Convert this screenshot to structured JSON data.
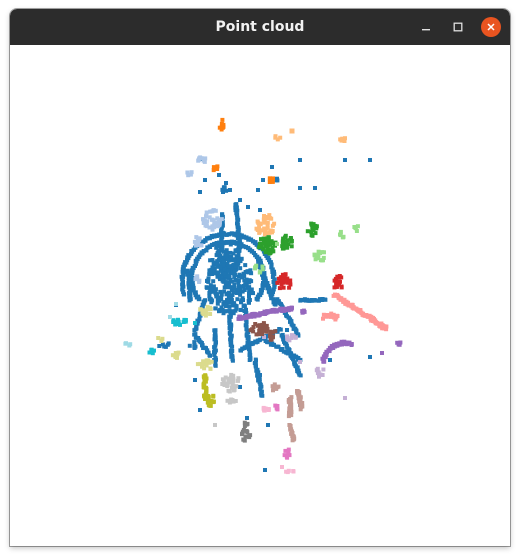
{
  "window": {
    "title": "Point cloud",
    "controls": {
      "minimize_icon": "minimize-icon",
      "maximize_icon": "maximize-icon",
      "close_icon": "close-icon"
    },
    "colors": {
      "titlebar": "#2c2c2c",
      "title_text": "#f2f2f2",
      "close_button": "#e95420",
      "canvas_background": "#ffffff"
    }
  },
  "point_cloud": {
    "palette": {
      "blue": "#1f77b4",
      "orange": "#ff7f0e",
      "light_orange": "#ffbb78",
      "light_blue": "#aec7e8",
      "green": "#2ca02c",
      "light_green": "#98df8a",
      "red": "#d62728",
      "pink": "#ff9896",
      "purple": "#9467bd",
      "light_purple": "#c5b0d5",
      "brown": "#8c564b",
      "tan": "#c49c94",
      "magenta": "#e377c2",
      "light_magenta": "#f7b6d2",
      "gray": "#7f7f7f",
      "light_gray": "#c7c7c7",
      "olive": "#bcbd22",
      "khaki": "#dbdb8d",
      "cyan": "#17becf",
      "light_cyan": "#9edae5"
    }
  }
}
